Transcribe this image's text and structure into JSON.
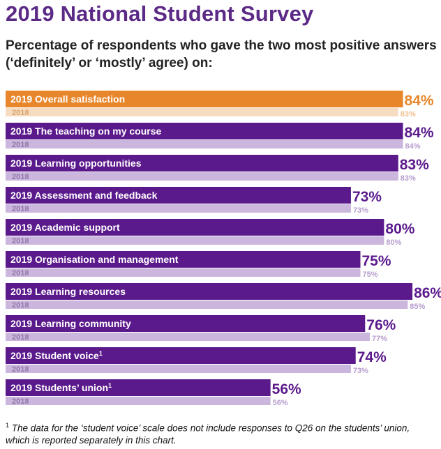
{
  "header": {
    "title": "2019 National Student Survey",
    "subtitle": "Percentage of respondents who gave the two most positive answers (‘definitely’ or ‘mostly’ agree) on:"
  },
  "footnote": {
    "marker": "1",
    "text": "The data for the ‘student voice’ scale does not include responses to Q26 on the students’ union, which is reported separately in this chart."
  },
  "colors": {
    "highlight_current": "#e8862b",
    "highlight_previous": "#f6dcc0",
    "highlight_value": "#e8862b",
    "highlight_value_prev": "#f2c08f",
    "current": "#5b1a8c",
    "previous": "#cbb6dd",
    "value_current": "#5b1a8c",
    "value_previous": "#b69ccd"
  },
  "chart_data": {
    "type": "bar",
    "orientation": "horizontal",
    "series": [
      {
        "name": "2019",
        "values": [
          84,
          84,
          83,
          73,
          80,
          75,
          86,
          76,
          74,
          56
        ]
      },
      {
        "name": "2018",
        "values": [
          83,
          84,
          83,
          73,
          80,
          75,
          85,
          77,
          73,
          56
        ]
      }
    ],
    "categories": [
      "Overall satisfaction",
      "The teaching on my course",
      "Learning opportunities",
      "Assessment and feedback",
      "Academic support",
      "Organisation and management",
      "Learning resources",
      "Learning community",
      "Student voice",
      "Students’ union"
    ],
    "superscripts": [
      "",
      "",
      "",
      "",
      "",
      "",
      "",
      "",
      "1",
      "1"
    ],
    "value_labels_current": [
      "84%",
      "84%",
      "83%",
      "73%",
      "80%",
      "75%",
      "86%",
      "76%",
      "74%",
      "56%"
    ],
    "value_labels_previous": [
      "83%",
      "84%",
      "83%",
      "73%",
      "80%",
      "75%",
      "85%",
      "77%",
      "73%",
      "56%"
    ],
    "highlight_index": 0,
    "xlim": [
      0,
      100
    ]
  }
}
